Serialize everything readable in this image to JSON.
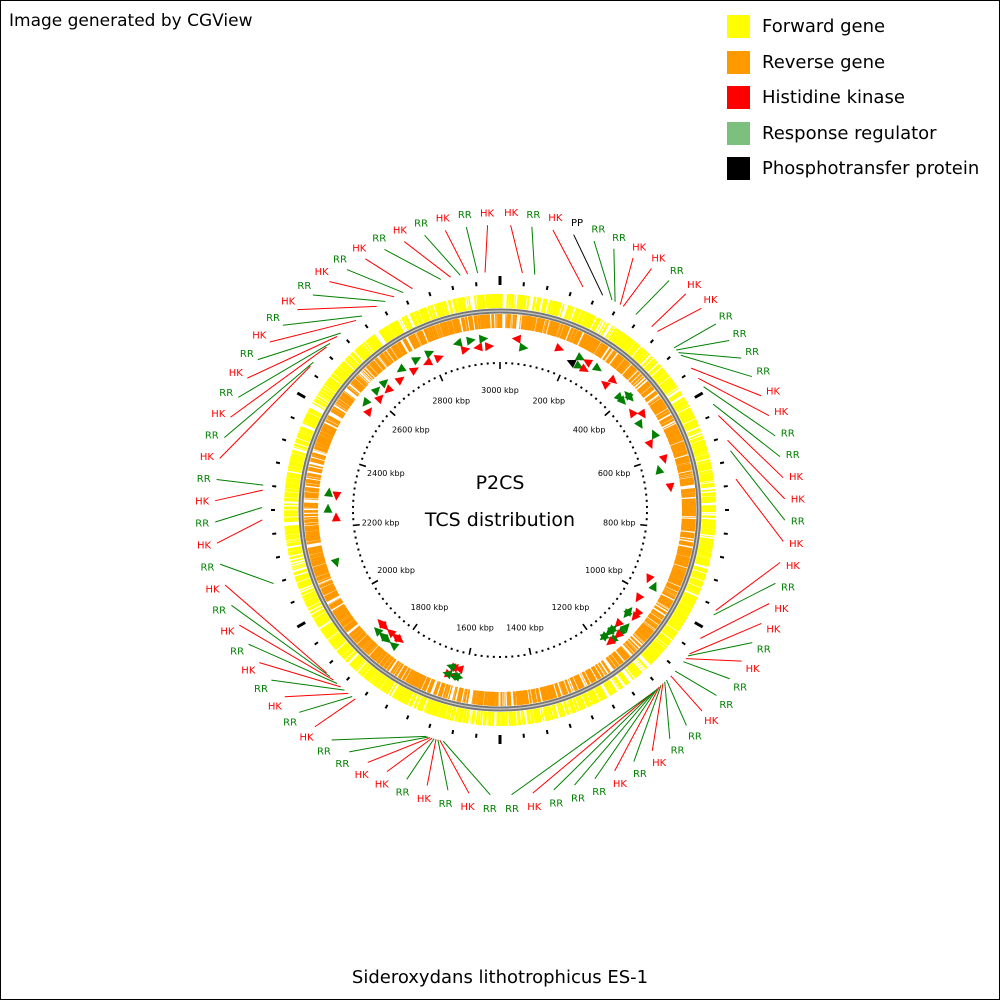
{
  "credit": "Image generated by CGView",
  "organism": "Sideroxydans lithotrophicus ES-1",
  "center_title": "P2CS",
  "center_subtitle": "TCS distribution",
  "legend": [
    {
      "label": "Forward gene",
      "color": "#ffff00"
    },
    {
      "label": "Reverse gene",
      "color": "#ff9900"
    },
    {
      "label": "Histidine kinase",
      "color": "#ff0000"
    },
    {
      "label": "Response regulator",
      "color": "#7dc07d"
    },
    {
      "label": "Phosphotransfer protein",
      "color": "#000000"
    }
  ],
  "map": {
    "genome_length_kbp": 3000,
    "scale_unit": "kbp",
    "scale_labels_kbp": [
      200,
      400,
      600,
      800,
      1000,
      1200,
      1400,
      1600,
      1800,
      2000,
      2200,
      2400,
      2600,
      2800,
      3000
    ],
    "label_colors": {
      "HK": "#ff0000",
      "RR": "#008000",
      "PP": "#000000"
    },
    "tcs_features": [
      {
        "type": "HK",
        "pos_kbp": 45
      },
      {
        "type": "RR",
        "pos_kbp": 70
      },
      {
        "type": "HK",
        "pos_kbp": 170
      },
      {
        "type": "PP",
        "pos_kbp": 213
      },
      {
        "type": "RR",
        "pos_kbp": 234
      },
      {
        "type": "RR",
        "pos_kbp": 241
      },
      {
        "type": "HK",
        "pos_kbp": 253
      },
      {
        "type": "HK",
        "pos_kbp": 260
      },
      {
        "type": "RR",
        "pos_kbp": 290
      },
      {
        "type": "HK",
        "pos_kbp": 330
      },
      {
        "type": "HK",
        "pos_kbp": 345
      },
      {
        "type": "RR",
        "pos_kbp": 392
      },
      {
        "type": "RR",
        "pos_kbp": 398
      },
      {
        "type": "RR",
        "pos_kbp": 405
      },
      {
        "type": "RR",
        "pos_kbp": 412
      },
      {
        "type": "HK",
        "pos_kbp": 445
      },
      {
        "type": "HK",
        "pos_kbp": 470
      },
      {
        "type": "RR",
        "pos_kbp": 490
      },
      {
        "type": "RR",
        "pos_kbp": 530
      },
      {
        "type": "HK",
        "pos_kbp": 555
      },
      {
        "type": "HK",
        "pos_kbp": 608
      },
      {
        "type": "RR",
        "pos_kbp": 630
      },
      {
        "type": "HK",
        "pos_kbp": 688
      },
      {
        "type": "HK",
        "pos_kbp": 958
      },
      {
        "type": "RR",
        "pos_kbp": 968
      },
      {
        "type": "HK",
        "pos_kbp": 1022
      },
      {
        "type": "HK",
        "pos_kbp": 1060
      },
      {
        "type": "RR",
        "pos_kbp": 1065
      },
      {
        "type": "HK",
        "pos_kbp": 1072
      },
      {
        "type": "RR",
        "pos_kbp": 1080
      },
      {
        "type": "RR",
        "pos_kbp": 1105
      },
      {
        "type": "HK",
        "pos_kbp": 1118
      },
      {
        "type": "RR",
        "pos_kbp": 1130
      },
      {
        "type": "RR",
        "pos_kbp": 1135
      },
      {
        "type": "HK",
        "pos_kbp": 1140
      },
      {
        "type": "RR",
        "pos_kbp": 1145
      },
      {
        "type": "HK",
        "pos_kbp": 1150
      },
      {
        "type": "RR",
        "pos_kbp": 1155
      },
      {
        "type": "RR",
        "pos_kbp": 1160
      },
      {
        "type": "RR",
        "pos_kbp": 1165
      },
      {
        "type": "HK",
        "pos_kbp": 1170
      },
      {
        "type": "RR",
        "pos_kbp": 1175
      },
      {
        "type": "RR",
        "pos_kbp": 1615
      },
      {
        "type": "HK",
        "pos_kbp": 1622
      },
      {
        "type": "RR",
        "pos_kbp": 1626
      },
      {
        "type": "HK",
        "pos_kbp": 1630
      },
      {
        "type": "RR",
        "pos_kbp": 1634
      },
      {
        "type": "HK",
        "pos_kbp": 1638
      },
      {
        "type": "HK",
        "pos_kbp": 1642
      },
      {
        "type": "RR",
        "pos_kbp": 1646
      },
      {
        "type": "RR",
        "pos_kbp": 1650
      },
      {
        "type": "HK",
        "pos_kbp": 1812
      },
      {
        "type": "RR",
        "pos_kbp": 1820
      },
      {
        "type": "HK",
        "pos_kbp": 1830
      },
      {
        "type": "RR",
        "pos_kbp": 1840
      },
      {
        "type": "HK",
        "pos_kbp": 1850
      },
      {
        "type": "RR",
        "pos_kbp": 1860
      },
      {
        "type": "HK",
        "pos_kbp": 1870
      },
      {
        "type": "RR",
        "pos_kbp": 1880
      },
      {
        "type": "HK",
        "pos_kbp": 1890
      },
      {
        "type": "RR",
        "pos_kbp": 2100
      },
      {
        "type": "HK",
        "pos_kbp": 2230
      },
      {
        "type": "RR",
        "pos_kbp": 2255
      },
      {
        "type": "HK",
        "pos_kbp": 2290
      },
      {
        "type": "RR",
        "pos_kbp": 2300
      },
      {
        "type": "HK",
        "pos_kbp": 2560
      },
      {
        "type": "RR",
        "pos_kbp": 2570
      },
      {
        "type": "HK",
        "pos_kbp": 2610
      },
      {
        "type": "RR",
        "pos_kbp": 2620
      },
      {
        "type": "HK",
        "pos_kbp": 2640
      },
      {
        "type": "RR",
        "pos_kbp": 2650
      },
      {
        "type": "HK",
        "pos_kbp": 2690
      },
      {
        "type": "RR",
        "pos_kbp": 2705
      },
      {
        "type": "HK",
        "pos_kbp": 2740
      },
      {
        "type": "RR",
        "pos_kbp": 2760
      },
      {
        "type": "HK",
        "pos_kbp": 2780
      },
      {
        "type": "RR",
        "pos_kbp": 2800
      },
      {
        "type": "HK",
        "pos_kbp": 2820
      },
      {
        "type": "RR",
        "pos_kbp": 2880
      },
      {
        "type": "HK",
        "pos_kbp": 2900
      },
      {
        "type": "RR",
        "pos_kbp": 2920
      },
      {
        "type": "HK",
        "pos_kbp": 2935
      },
      {
        "type": "RR",
        "pos_kbp": 2955
      },
      {
        "type": "HK",
        "pos_kbp": 2970
      }
    ]
  }
}
